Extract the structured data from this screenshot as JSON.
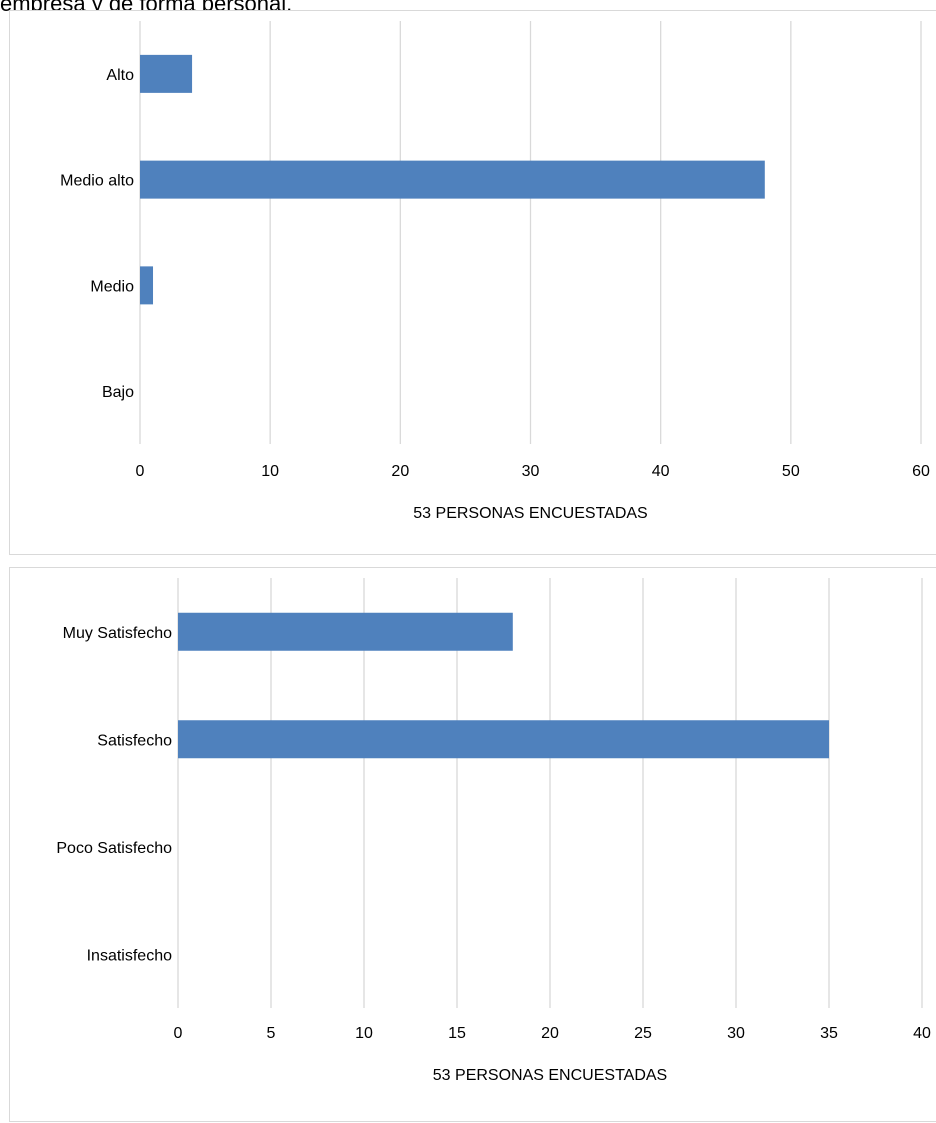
{
  "intro_text": "empresa y de forma personal.",
  "chart_data": [
    {
      "type": "bar",
      "orientation": "horizontal",
      "categories": [
        "Alto",
        "Medio alto",
        "Medio",
        "Bajo"
      ],
      "values": [
        4,
        48,
        1,
        0
      ],
      "xlabel": "53 PERSONAS ENCUESTADAS",
      "xlim": [
        0,
        60
      ],
      "xticks": [
        0,
        10,
        20,
        30,
        40,
        50,
        60
      ],
      "grid": "vertical",
      "bar_color": "#4f81bd",
      "grid_color": "#d9d9d9"
    },
    {
      "type": "bar",
      "orientation": "horizontal",
      "categories": [
        "Muy Satisfecho",
        "Satisfecho",
        "Poco Satisfecho",
        "Insatisfecho"
      ],
      "values": [
        18,
        35,
        0,
        0
      ],
      "xlabel": "53 PERSONAS ENCUESTADAS",
      "xlim": [
        0,
        40
      ],
      "xticks": [
        0,
        5,
        10,
        15,
        20,
        25,
        30,
        35,
        40
      ],
      "grid": "vertical",
      "bar_color": "#4f81bd",
      "grid_color": "#d9d9d9"
    }
  ]
}
